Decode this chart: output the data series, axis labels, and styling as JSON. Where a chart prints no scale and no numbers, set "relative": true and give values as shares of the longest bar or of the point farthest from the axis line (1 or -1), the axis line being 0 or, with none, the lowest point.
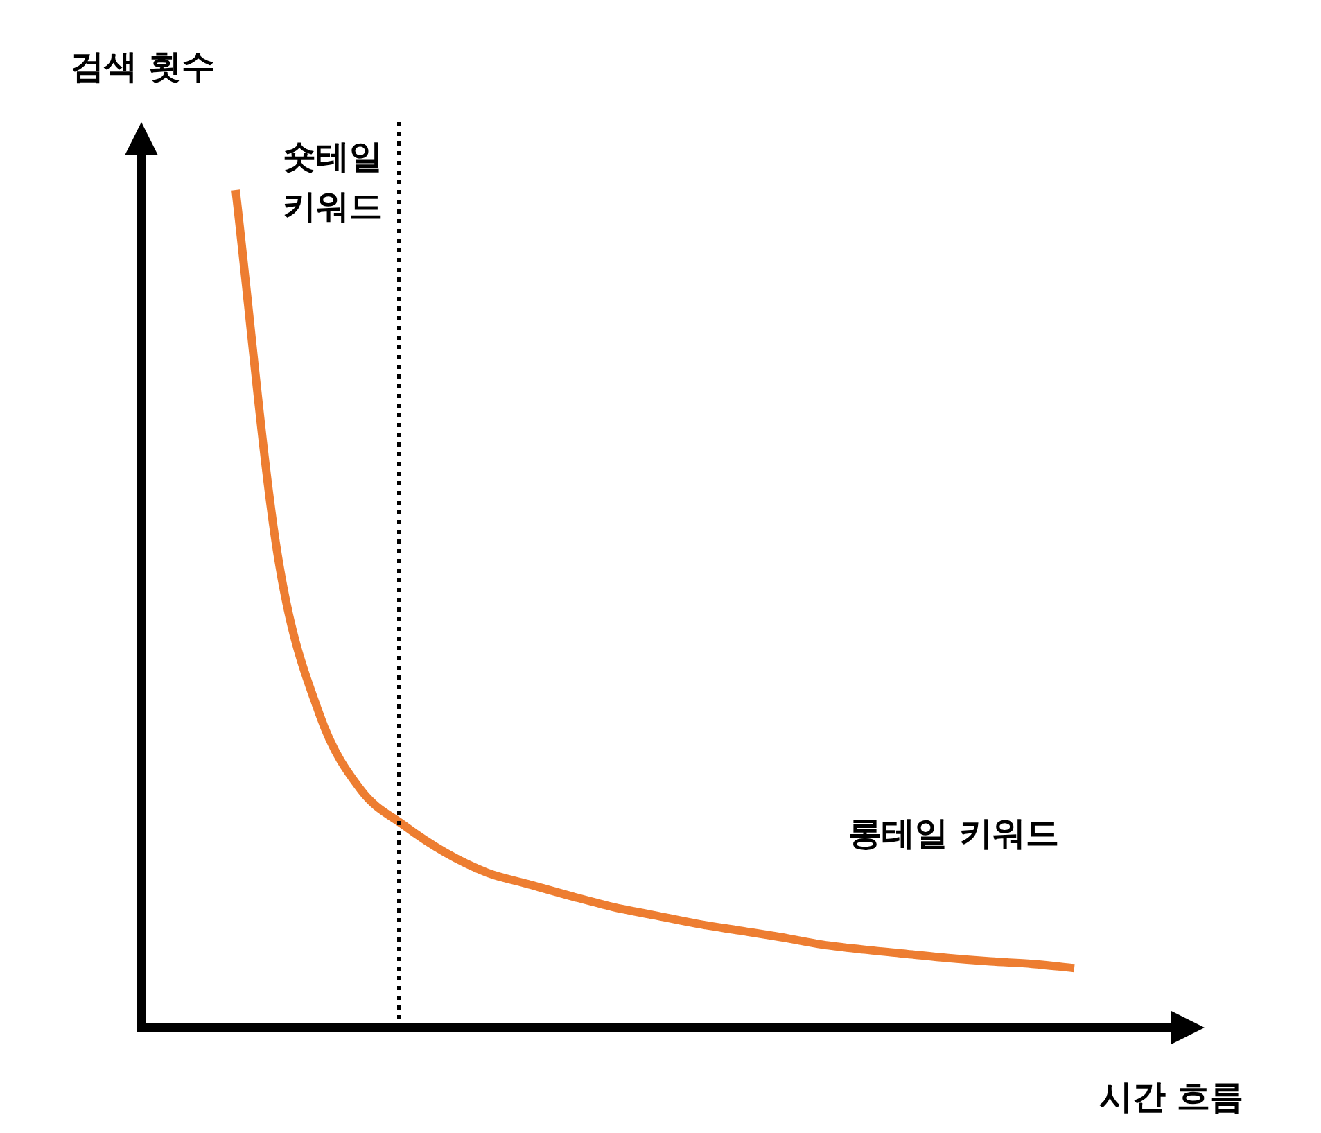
{
  "chart_data": {
    "type": "line",
    "relative": true,
    "ylabel": "검색 횟수",
    "xlabel": "시간 흐름",
    "categories": [
      null,
      null,
      null,
      null,
      null,
      null,
      null,
      null,
      null,
      null,
      null,
      null,
      null,
      null,
      null,
      null,
      null,
      null,
      null,
      null,
      null
    ],
    "series": [
      {
        "color": "#ed7d31",
        "values": [
          1.0,
          0.565,
          0.374,
          0.283,
          0.242,
          0.209,
          0.185,
          0.171,
          0.157,
          0.144,
          0.134,
          0.124,
          0.116,
          0.108,
          0.099,
          0.093,
          0.088,
          0.083,
          0.079,
          0.076,
          0.071
        ]
      }
    ],
    "annotations": [
      "숏테일\n키워드",
      "롱테일 키워드"
    ],
    "legend": false,
    "marker": "none"
  }
}
